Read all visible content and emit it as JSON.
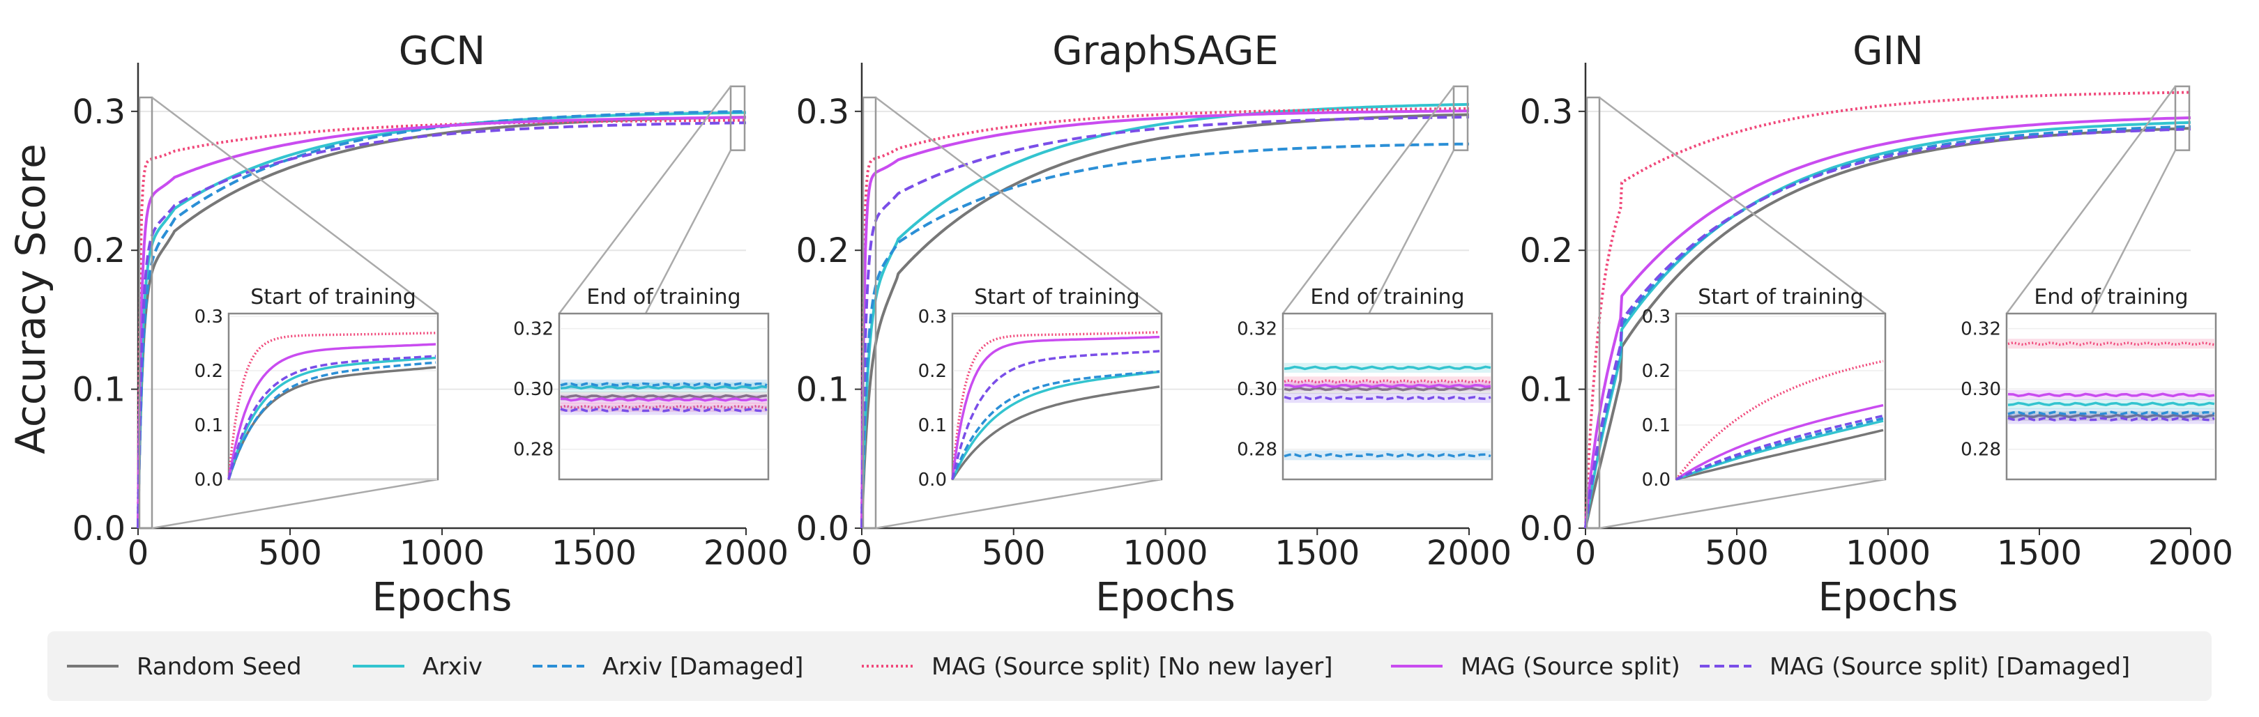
{
  "figure": {
    "ylabel": "Accuracy Score",
    "xlabel": "Epochs",
    "y_ticks": [
      "0.0",
      "0.1",
      "0.2",
      "0.3"
    ],
    "x_ticks": [
      "0",
      "500",
      "1000",
      "1500",
      "2000"
    ],
    "start_inset_title": "Start of training",
    "end_inset_title": "End of training",
    "start_inset_y_ticks": [
      "0.0",
      "0.1",
      "0.2",
      "0.3"
    ],
    "end_inset_y_ticks": [
      "0.28",
      "0.30",
      "0.32"
    ]
  },
  "legend": [
    {
      "label": "Random Seed",
      "color": "#777777",
      "dash": "solid"
    },
    {
      "label": "Arxiv",
      "color": "#33c4cf",
      "dash": "solid"
    },
    {
      "label": "Arxiv [Damaged]",
      "color": "#2b8fd6",
      "dash": "dashed"
    },
    {
      "label": "MAG (Source split) [No new layer]",
      "color": "#f0487a",
      "dash": "dotted"
    },
    {
      "label": "MAG (Source split)",
      "color": "#c94cf0",
      "dash": "solid"
    },
    {
      "label": "MAG (Source split) [Damaged]",
      "color": "#7a4ee8",
      "dash": "dashed"
    }
  ],
  "chart_data": [
    {
      "type": "line",
      "title": "GCN",
      "xlabel": "Epochs",
      "ylabel": "Accuracy Score",
      "xlim": [
        0,
        2000
      ],
      "ylim": [
        0,
        0.33
      ],
      "series": [
        {
          "name": "Random Seed",
          "final": 0.2975,
          "early": 0.19,
          "rise": 35
        },
        {
          "name": "Arxiv",
          "final": 0.3005,
          "early": 0.21,
          "rise": 33
        },
        {
          "name": "Arxiv [Damaged]",
          "final": 0.3015,
          "early": 0.2,
          "rise": 38
        },
        {
          "name": "MAG (Source split) [No new layer]",
          "final": 0.294,
          "early": 0.265,
          "rise": 9
        },
        {
          "name": "MAG (Source split)",
          "final": 0.2965,
          "early": 0.24,
          "rise": 22
        },
        {
          "name": "MAG (Source split) [Damaged]",
          "final": 0.293,
          "early": 0.215,
          "rise": 30
        }
      ]
    },
    {
      "type": "line",
      "title": "GraphSAGE",
      "xlabel": "Epochs",
      "ylabel": "Accuracy Score",
      "xlim": [
        0,
        2000
      ],
      "ylim": [
        0,
        0.33
      ],
      "series": [
        {
          "name": "Random Seed",
          "final": 0.3,
          "early": 0.15,
          "rise": 60
        },
        {
          "name": "Arxiv",
          "final": 0.307,
          "early": 0.18,
          "rise": 50
        },
        {
          "name": "Arxiv [Damaged]",
          "final": 0.278,
          "early": 0.185,
          "rise": 42
        },
        {
          "name": "MAG (Source split) [No new layer]",
          "final": 0.3025,
          "early": 0.265,
          "rise": 8
        },
        {
          "name": "MAG (Source split)",
          "final": 0.301,
          "early": 0.255,
          "rise": 14
        },
        {
          "name": "MAG (Source split) [Damaged]",
          "final": 0.297,
          "early": 0.225,
          "rise": 28
        }
      ]
    },
    {
      "type": "line",
      "title": "GIN",
      "xlabel": "Epochs",
      "ylabel": "Accuracy Score",
      "xlim": [
        0,
        2000
      ],
      "ylim": [
        0,
        0.33
      ],
      "series": [
        {
          "name": "Random Seed",
          "final": 0.291,
          "early": 0.085,
          "rise": 230
        },
        {
          "name": "Arxiv",
          "final": 0.295,
          "early": 0.1,
          "rise": 180
        },
        {
          "name": "Arxiv [Damaged]",
          "final": 0.292,
          "early": 0.105,
          "rise": 170
        },
        {
          "name": "MAG (Source split) [No new layer]",
          "final": 0.315,
          "early": 0.23,
          "rise": 120
        },
        {
          "name": "MAG (Source split)",
          "final": 0.298,
          "early": 0.13,
          "rise": 140
        },
        {
          "name": "MAG (Source split) [Damaged]",
          "final": 0.29,
          "early": 0.11,
          "rise": 160
        }
      ]
    }
  ]
}
